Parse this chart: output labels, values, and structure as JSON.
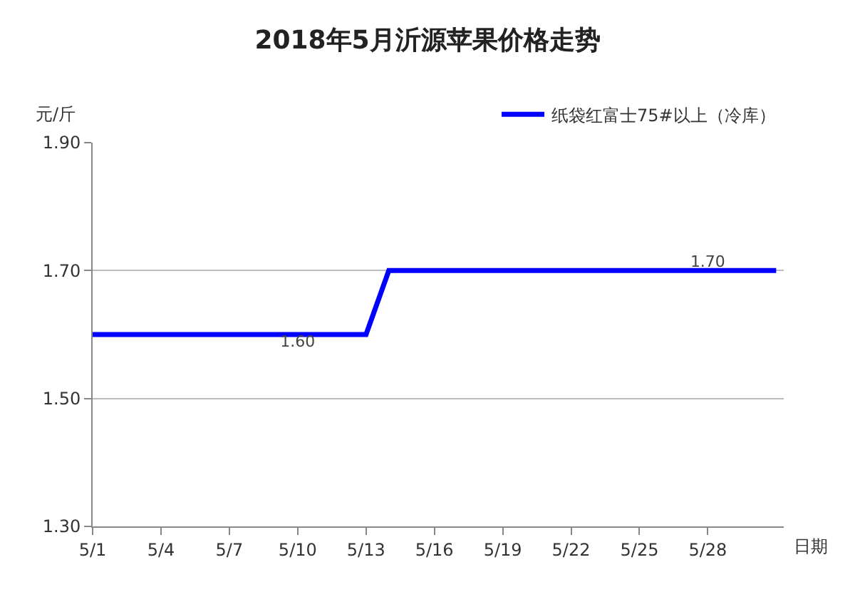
{
  "chart_data": {
    "type": "line",
    "title": "2018年5月沂源苹果价格走势",
    "xlabel": "日期",
    "ylabel": "元/斤",
    "x": [
      "--05-01",
      "--05-02",
      "--05-03",
      "--05-04",
      "--05-05",
      "--05-06",
      "--05-07",
      "--05-08",
      "--05-09",
      "--05-10",
      "--05-11",
      "--05-12",
      "--05-13",
      "--05-14",
      "--05-15",
      "--05-16",
      "--05-17",
      "--05-18",
      "--05-19",
      "--05-20",
      "--05-21",
      "--05-22",
      "--05-23",
      "--05-24",
      "--05-25",
      "--05-26",
      "--05-27",
      "--05-28",
      "--05-29",
      "--05-30",
      "--05-31"
    ],
    "series": [
      {
        "name": "纸袋红富士75#以上（冷库）",
        "color": "#0000ff",
        "values": [
          1.6,
          1.6,
          1.6,
          1.6,
          1.6,
          1.6,
          1.6,
          1.6,
          1.6,
          1.6,
          1.6,
          1.6,
          1.6,
          1.7,
          1.7,
          1.7,
          1.7,
          1.7,
          1.7,
          1.7,
          1.7,
          1.7,
          1.7,
          1.7,
          1.7,
          1.7,
          1.7,
          1.7,
          1.7,
          1.7,
          1.7
        ],
        "value_labels": [
          null,
          null,
          null,
          null,
          null,
          null,
          null,
          null,
          null,
          "1.60",
          null,
          null,
          null,
          null,
          null,
          null,
          null,
          null,
          null,
          null,
          null,
          null,
          null,
          null,
          null,
          null,
          null,
          "1.70",
          null,
          null,
          null
        ]
      }
    ],
    "xlim": [
      "--05-01",
      "--05-31T08:00"
    ],
    "xticks": [
      {
        "value": "--05-01",
        "label": "5/1"
      },
      {
        "value": "--05-04",
        "label": "5/4"
      },
      {
        "value": "--05-07",
        "label": "5/7"
      },
      {
        "value": "--05-10",
        "label": "5/10"
      },
      {
        "value": "--05-13",
        "label": "5/13"
      },
      {
        "value": "--05-16",
        "label": "5/16"
      },
      {
        "value": "--05-19",
        "label": "5/19"
      },
      {
        "value": "--05-22",
        "label": "5/22"
      },
      {
        "value": "--05-25",
        "label": "5/25"
      },
      {
        "value": "--05-28",
        "label": "5/28"
      }
    ],
    "ylim": [
      1.3,
      1.9
    ],
    "yticks": [
      {
        "value": 1.3,
        "label": "1.30"
      },
      {
        "value": 1.5,
        "label": "1.50"
      },
      {
        "value": 1.7,
        "label": "1.70"
      },
      {
        "value": 1.9,
        "label": "1.90"
      }
    ],
    "grid": "y",
    "legend": "top right",
    "marker": "none",
    "line_style": "solid"
  }
}
